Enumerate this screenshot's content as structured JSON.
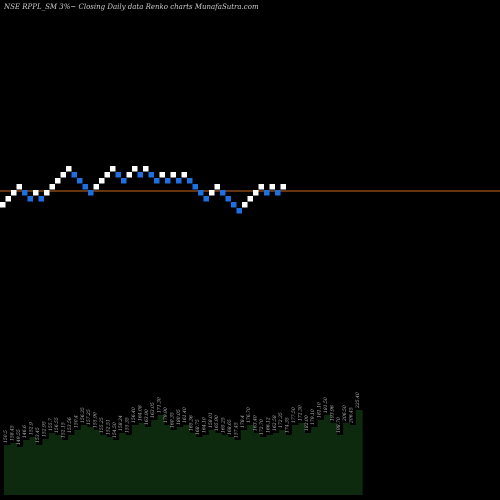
{
  "header": {
    "title": "NSE RPPL_SM 3%~  Closing Daily data  Renko  charts MunafaSutra.com"
  },
  "chart_data": [
    {
      "type": "renko",
      "title": "NSE RPPL_SM 3%~  Closing Daily data  Renko  charts MunafaSutra.com",
      "brick_size_percent": 3,
      "reference_line_color": "#c86a1e",
      "colors": {
        "up": "#ffffff",
        "down": "#1e6fe0"
      },
      "direction_legend": {
        "up": 1,
        "down": -1
      },
      "bricks": [
        1,
        1,
        1,
        1,
        -1,
        -1,
        1,
        -1,
        1,
        1,
        1,
        1,
        1,
        -1,
        -1,
        -1,
        -1,
        1,
        1,
        1,
        1,
        -1,
        -1,
        1,
        1,
        -1,
        1,
        -1,
        -1,
        1,
        -1,
        1,
        -1,
        1,
        -1,
        -1,
        -1,
        -1,
        1,
        1,
        -1,
        -1,
        -1,
        -1,
        1,
        1,
        1,
        1,
        -1,
        1,
        -1,
        1
      ]
    },
    {
      "type": "bar",
      "title": "",
      "color": "#0e2a0e",
      "values": [
        50,
        52,
        48,
        55,
        58,
        50,
        56,
        62,
        60,
        55,
        60,
        65,
        70,
        68,
        65,
        60,
        58,
        55,
        62,
        60,
        70,
        72,
        68,
        75,
        80,
        70,
        65,
        68,
        70,
        62,
        58,
        60,
        65,
        62,
        60,
        58,
        55,
        65,
        70,
        62,
        58,
        60,
        62,
        65,
        60,
        70,
        72,
        62,
        68,
        75,
        80,
        72,
        60,
        72,
        70,
        85
      ],
      "labels": [
        "150.5",
        "158.45",
        "149.55",
        "146.6",
        "152.9",
        "153.45",
        "152.95",
        "155.7",
        "156.55",
        "152.15",
        "153.56",
        "150.4",
        "156.35",
        "157.25",
        "155.90",
        "155.25",
        "152.51",
        "154.50",
        "158.24",
        "155.35",
        "156.40",
        "164.08",
        "163.90",
        "163.05",
        "171.30",
        "179.90",
        "160.35",
        "180.05",
        "161.40",
        "165.36",
        "168.75",
        "164.10",
        "158.01",
        "165.90",
        "165.25",
        "168.65",
        "157.45",
        "178.4",
        "176.70",
        "163.40",
        "172.70",
        "166.12",
        "162.58",
        "172.35",
        "174.35",
        "177.50",
        "172.30",
        "182.00",
        "179.10",
        "181.10",
        "181.50",
        "193.96",
        "198.70",
        "206.50",
        "206.45",
        "225.40"
      ]
    }
  ]
}
